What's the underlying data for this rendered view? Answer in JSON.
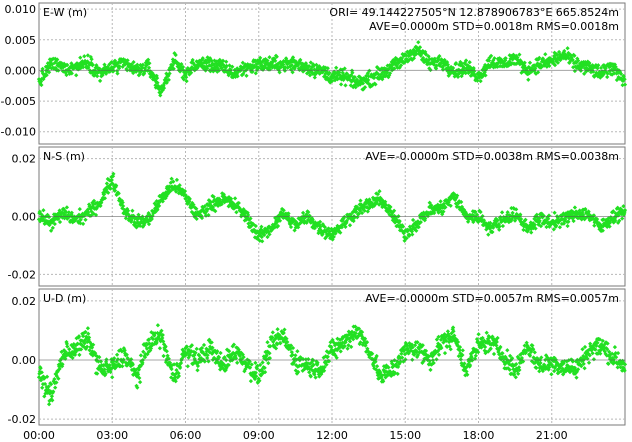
{
  "chart_data": [
    {
      "type": "scatter",
      "panel_label": "E-W (m)",
      "header_line": "ORI= 49.144227505°N   12.878906783°E 665.8524m",
      "stats": "AVE=0.0000m STD=0.0018m RMS=0.0018m",
      "ylim": [
        -0.012,
        0.011
      ],
      "yticks": [
        0.01,
        0.005,
        0.0,
        -0.005,
        -0.01
      ],
      "ytick_labels": [
        "0.010",
        "0.005",
        "0.000",
        "-0.005",
        "-0.010"
      ],
      "series": [
        {
          "color": "#22e022",
          "x_hours": [
            0,
            0.5,
            1,
            1.5,
            2,
            2.5,
            3,
            3.5,
            4,
            4.5,
            5,
            5.5,
            6,
            6.5,
            7,
            7.5,
            8,
            8.5,
            9,
            9.5,
            10,
            10.5,
            11,
            11.5,
            12,
            12.5,
            13,
            13.5,
            14,
            14.5,
            15,
            15.5,
            16,
            16.5,
            17,
            17.5,
            18,
            18.5,
            19,
            19.5,
            20,
            20.5,
            21,
            21.5,
            22,
            22.5,
            23,
            23.5,
            24
          ],
          "y": [
            -0.002,
            0.001,
            0.0005,
            0.0005,
            0.0015,
            -0.0005,
            0.0005,
            0.001,
            0.0,
            0.0005,
            -0.0035,
            0.0015,
            -0.0005,
            0.001,
            0.001,
            0.0005,
            -0.0005,
            0.0005,
            0.001,
            0.001,
            0.001,
            0.001,
            0.0005,
            0.0,
            -0.001,
            -0.001,
            -0.002,
            -0.0015,
            -0.0005,
            0.0005,
            0.002,
            0.0035,
            0.001,
            0.0015,
            0.0,
            0.0005,
            -0.001,
            0.0015,
            0.001,
            0.002,
            0.0,
            0.001,
            0.0015,
            0.0025,
            0.001,
            0.0005,
            -0.0005,
            0.0005,
            -0.0015
          ]
        }
      ]
    },
    {
      "type": "scatter",
      "panel_label": "N-S (m)",
      "stats": "AVE=-0.0000m STD=0.0038m RMS=0.0038m",
      "ylim": [
        -0.024,
        0.024
      ],
      "yticks": [
        0.02,
        0.0,
        -0.02
      ],
      "ytick_labels": [
        "0.02",
        "0.00",
        "-0.02"
      ],
      "series": [
        {
          "color": "#22e022",
          "x_hours": [
            0,
            0.5,
            1,
            1.5,
            2,
            2.5,
            3,
            3.5,
            4,
            4.5,
            5,
            5.5,
            6,
            6.5,
            7,
            7.5,
            8,
            8.5,
            9,
            9.5,
            10,
            10.5,
            11,
            11.5,
            12,
            12.5,
            13,
            13.5,
            14,
            14.5,
            15,
            15.5,
            16,
            16.5,
            17,
            17.5,
            18,
            18.5,
            19,
            19.5,
            20,
            20.5,
            21,
            21.5,
            22,
            22.5,
            23,
            23.5,
            24
          ],
          "y": [
            0.0,
            -0.002,
            0.001,
            -0.001,
            0.001,
            0.005,
            0.013,
            0.002,
            -0.002,
            -0.001,
            0.006,
            0.011,
            0.007,
            0.0,
            0.004,
            0.006,
            0.004,
            0.0,
            -0.007,
            -0.004,
            0.001,
            -0.003,
            0.0,
            -0.004,
            -0.006,
            -0.002,
            0.002,
            0.004,
            0.006,
            0.0,
            -0.006,
            -0.002,
            0.002,
            0.003,
            0.007,
            0.0,
            0.0,
            -0.004,
            -0.001,
            0.001,
            -0.004,
            -0.001,
            -0.002,
            -0.001,
            0.001,
            0.001,
            -0.004,
            0.0,
            0.002
          ]
        }
      ]
    },
    {
      "type": "scatter",
      "panel_label": "U-D (m)",
      "stats": "AVE=-0.0000m STD=0.0057m RMS=0.0057m",
      "ylim": [
        -0.022,
        0.024
      ],
      "yticks": [
        0.02,
        0.0,
        -0.02
      ],
      "ytick_labels": [
        "0.02",
        "0.00",
        "-0.02"
      ],
      "series": [
        {
          "color": "#22e022",
          "x_hours": [
            0,
            0.5,
            1,
            1.5,
            2,
            2.5,
            3,
            3.5,
            4,
            4.5,
            5,
            5.5,
            6,
            6.5,
            7,
            7.5,
            8,
            8.5,
            9,
            9.5,
            10,
            10.5,
            11,
            11.5,
            12,
            12.5,
            13,
            13.5,
            14,
            14.5,
            15,
            15.5,
            16,
            16.5,
            17,
            17.5,
            18,
            18.5,
            19,
            19.5,
            20,
            20.5,
            21,
            21.5,
            22,
            22.5,
            23,
            23.5,
            24
          ],
          "y": [
            -0.005,
            -0.012,
            0.002,
            0.004,
            0.007,
            -0.003,
            -0.003,
            0.002,
            -0.006,
            0.006,
            0.008,
            -0.006,
            0.003,
            0.0,
            0.004,
            -0.002,
            0.003,
            -0.001,
            -0.006,
            0.005,
            0.008,
            0.0,
            -0.002,
            -0.003,
            0.003,
            0.006,
            0.01,
            0.004,
            -0.006,
            -0.003,
            0.003,
            0.004,
            0.0,
            0.006,
            0.008,
            -0.003,
            0.005,
            0.006,
            0.002,
            -0.004,
            0.005,
            -0.002,
            -0.001,
            -0.002,
            -0.003,
            0.003,
            0.005,
            0.001,
            -0.002
          ]
        }
      ]
    }
  ],
  "x_axis": {
    "tick_labels": [
      "00:00",
      "03:00",
      "06:00",
      "09:00",
      "12:00",
      "15:00",
      "18:00",
      "21:00"
    ],
    "range_hours": [
      0,
      24
    ]
  },
  "style": {
    "point_color": "#22e022",
    "grid_color": "#b8b8b8",
    "grid": true
  }
}
